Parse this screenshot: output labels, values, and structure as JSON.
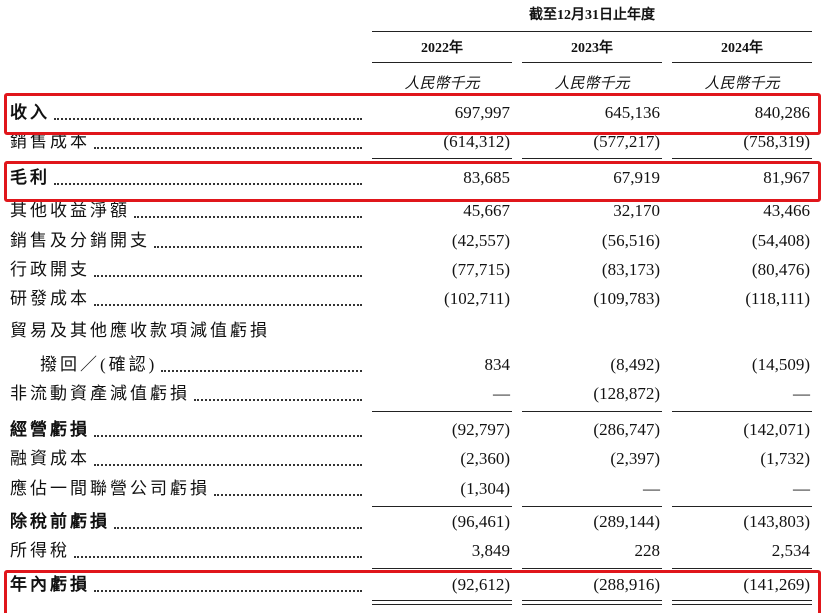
{
  "header": {
    "period": "截至12月31日止年度",
    "years": [
      "2022年",
      "2023年",
      "2024年"
    ],
    "units": [
      "人民幣千元",
      "人民幣千元",
      "人民幣千元"
    ]
  },
  "rows": [
    {
      "label": "收入",
      "values": [
        "697,997",
        "645,136",
        "840,286"
      ]
    },
    {
      "label": "銷售成本",
      "values": [
        "(614,312)",
        "(577,217)",
        "(758,319)"
      ]
    },
    {
      "label": "毛利",
      "values": [
        "83,685",
        "67,919",
        "81,967"
      ]
    },
    {
      "label": "其他收益淨額",
      "values": [
        "45,667",
        "32,170",
        "43,466"
      ]
    },
    {
      "label": "銷售及分銷開支",
      "values": [
        "(42,557)",
        "(56,516)",
        "(54,408)"
      ]
    },
    {
      "label": "行政開支",
      "values": [
        "(77,715)",
        "(83,173)",
        "(80,476)"
      ]
    },
    {
      "label": "研發成本",
      "values": [
        "(102,711)",
        "(109,783)",
        "(118,111)"
      ]
    },
    {
      "label": "貿易及其他應收款項減值虧損"
    },
    {
      "label": "撥回／(確認)",
      "values": [
        "834",
        "(8,492)",
        "(14,509)"
      ]
    },
    {
      "label": "非流動資產減值虧損",
      "values": [
        "—",
        "(128,872)",
        "—"
      ]
    },
    {
      "label": "經營虧損",
      "values": [
        "(92,797)",
        "(286,747)",
        "(142,071)"
      ]
    },
    {
      "label": "融資成本",
      "values": [
        "(2,360)",
        "(2,397)",
        "(1,732)"
      ]
    },
    {
      "label": "應佔一間聯營公司虧損",
      "values": [
        "(1,304)",
        "—",
        "—"
      ]
    },
    {
      "label": "除稅前虧損",
      "values": [
        "(96,461)",
        "(289,144)",
        "(143,803)"
      ]
    },
    {
      "label": "所得稅",
      "values": [
        "3,849",
        "228",
        "2,534"
      ]
    },
    {
      "label": "年內虧損",
      "values": [
        "(92,612)",
        "(288,916)",
        "(141,269)"
      ]
    }
  ]
}
